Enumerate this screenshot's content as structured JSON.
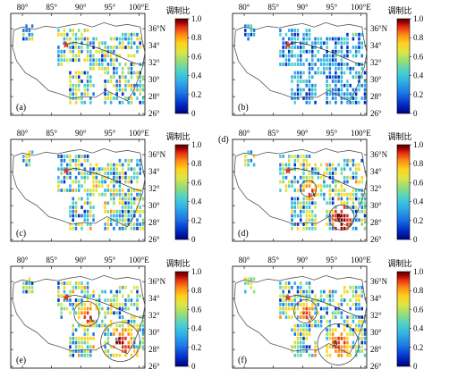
{
  "axes": {
    "x_ticks": [
      "80°",
      "85°",
      "90°",
      "95°",
      "100°E"
    ],
    "y_ticks": [
      "36°N",
      "34°",
      "32°",
      "30°",
      "28°",
      "26°"
    ]
  },
  "colorbar": {
    "title": "调制比",
    "ticks": [
      "1.0",
      "0.8",
      "0.6",
      "0.4",
      "0.2",
      "0"
    ],
    "colors": [
      "#00007f",
      "#0030c8",
      "#1e78e6",
      "#32b4e6",
      "#50d2c8",
      "#96dc78",
      "#dce646",
      "#ffd21e",
      "#ff8c14",
      "#e63214",
      "#a00000",
      "#500000"
    ]
  },
  "panels": [
    {
      "label": "(a)",
      "regions": []
    },
    {
      "label": "(b)",
      "regions": []
    },
    {
      "label": "(c)",
      "regions": []
    },
    {
      "label": "(d)",
      "regions": [
        "A",
        "B"
      ]
    },
    {
      "label": "(e)",
      "regions": [
        "A",
        "B"
      ]
    },
    {
      "label": "(f)",
      "regions": [
        "A",
        "B"
      ]
    }
  ],
  "stray_label": "(d)",
  "map_colors": {
    "star": "#d23c28",
    "boundary": "#555555",
    "circle": "#333333"
  }
}
